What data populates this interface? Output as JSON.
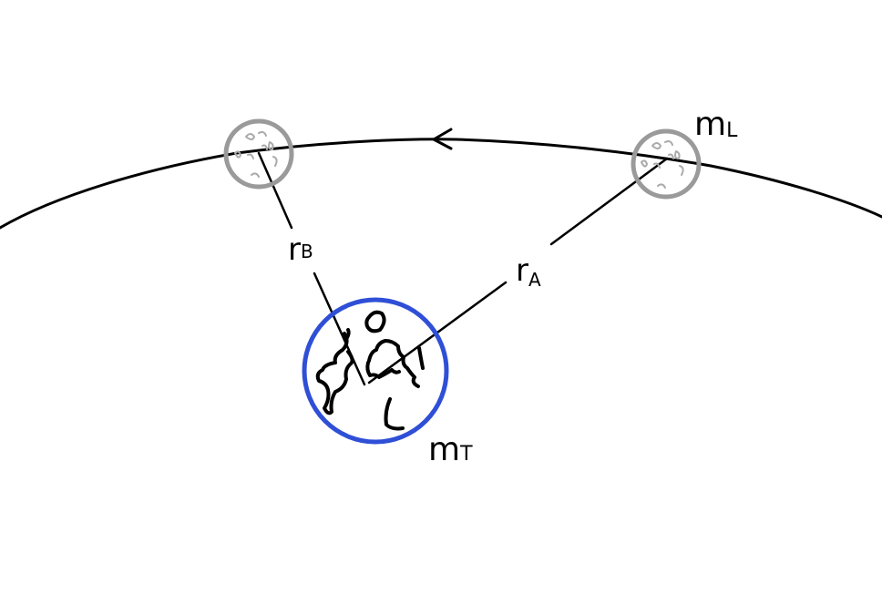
{
  "labels": {
    "moon_mass": {
      "main": "m",
      "sub": "L"
    },
    "earth_mass": {
      "main": "m",
      "sub": "T"
    },
    "radius_a": {
      "main": "r",
      "sub": "A"
    },
    "radius_b": {
      "main": "r",
      "sub": "B"
    }
  },
  "colors": {
    "earth_outline": "#2f4fd6",
    "moon_outline": "#9a9a9a",
    "ink": "#000000"
  }
}
